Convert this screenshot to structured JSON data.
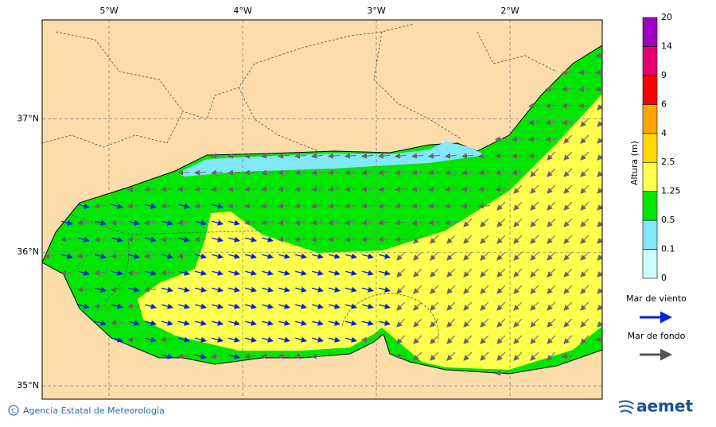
{
  "map": {
    "xlim": [
      -5.5,
      -1.31
    ],
    "ylim": [
      34.9,
      37.74
    ],
    "xticks": [
      {
        "value": -5,
        "label": "5°W"
      },
      {
        "value": -4,
        "label": "4°W"
      },
      {
        "value": -3,
        "label": "3°W"
      },
      {
        "value": -2,
        "label": "2°W"
      }
    ],
    "yticks": [
      {
        "value": 35,
        "label": "35°N"
      },
      {
        "value": 36,
        "label": "36°N"
      },
      {
        "value": 37,
        "label": "37°N"
      }
    ]
  },
  "colorbar": {
    "title": "Altura (m)",
    "levels": [
      0,
      0.1,
      0.5,
      1.25,
      2.5,
      4,
      6,
      9,
      14,
      20
    ],
    "colors": [
      "#ccffff",
      "#80e8f8",
      "#00e600",
      "#ffff4d",
      "#ffd700",
      "#ffa500",
      "#ff0000",
      "#e6006e",
      "#a000c0"
    ]
  },
  "legend": [
    {
      "label": "Mar de viento",
      "color": "#0022dd"
    },
    {
      "label": "Mar de fondo",
      "color": "#555555"
    }
  ],
  "footer": {
    "credit": "Agencia Estatal de Meteorología",
    "logo": "aemet"
  }
}
